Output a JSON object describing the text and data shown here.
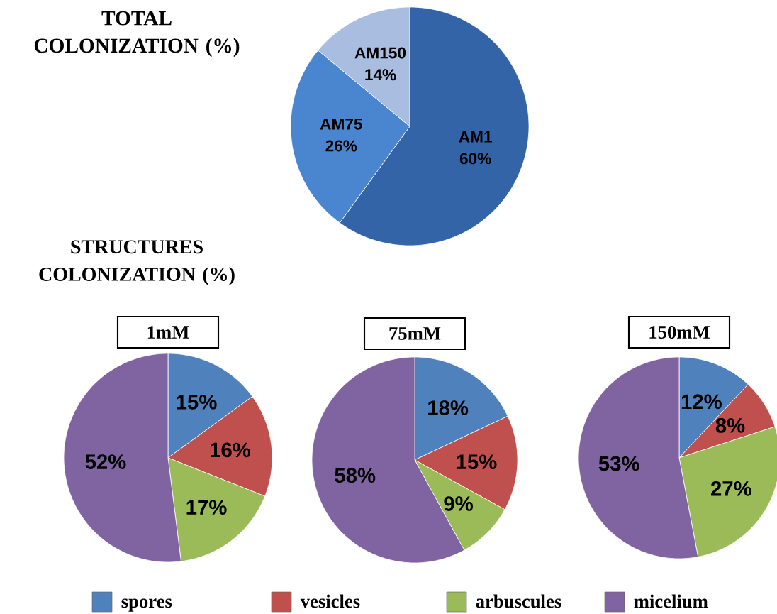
{
  "chart_data": [
    {
      "type": "pie",
      "title": "TOTAL COLONIZATION (%)",
      "categories": [
        "AM1",
        "AM75",
        "AM150"
      ],
      "values": [
        60,
        26,
        14
      ],
      "value_labels": [
        "60%",
        "26%",
        "14%"
      ],
      "colors": [
        "#3464a8",
        "#4a86d0",
        "#a9bde0"
      ]
    },
    {
      "type": "pie",
      "title": "1mM",
      "annotations": [
        "STRUCTURES COLONIZATION (%)"
      ],
      "categories": [
        null,
        null,
        null,
        null
      ],
      "values": [
        15,
        16,
        17,
        52
      ],
      "value_labels": [
        "15%",
        "16%",
        "17%",
        "52%"
      ],
      "colors": [
        "#4f81bd",
        "#c0504d",
        "#9bbb59",
        "#8064a2"
      ]
    },
    {
      "type": "pie",
      "title": "75mM",
      "categories": [
        null,
        null,
        null,
        null
      ],
      "values": [
        18,
        15,
        9,
        58
      ],
      "value_labels": [
        "18%",
        "15%",
        "9%",
        "58%"
      ],
      "colors": [
        "#4f81bd",
        "#c0504d",
        "#9bbb59",
        "#8064a2"
      ]
    },
    {
      "type": "pie",
      "title": "150mM",
      "categories": [
        "spores",
        "vesicles",
        "arbuscules",
        "micelium"
      ],
      "values": [
        12,
        8,
        27,
        53
      ],
      "value_labels": [
        "12%",
        "8%",
        "27%",
        "53%"
      ],
      "colors": [
        "#4f81bd",
        "#c0504d",
        "#9bbb59",
        "#8064a2"
      ],
      "legend": "bottom"
    }
  ]
}
